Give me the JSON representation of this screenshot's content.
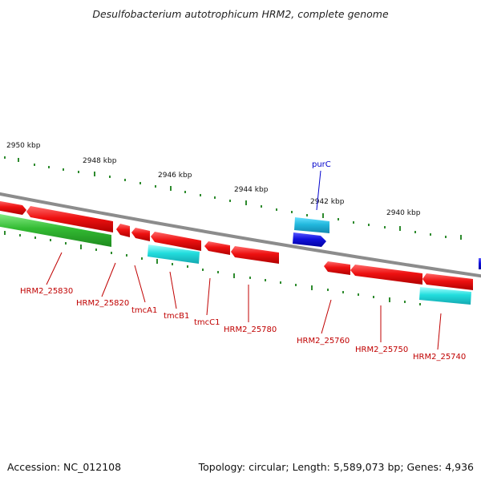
{
  "title": "Desulfobacterium autotrophicum HRM2, complete genome",
  "footer": {
    "accession": "Accession: NC_012108",
    "summary": "Topology: circular; Length: 5,589,073 bp; Genes: 4,936"
  },
  "colors": {
    "backbone": "#8c8c8c",
    "tick": "#2e8b2e",
    "gene_red": "#ee1111",
    "gene_green": "#33bb33",
    "gene_cyan": "#22dddd",
    "gene_blue": "#1111dd",
    "label_red": "#c00000",
    "label_blue": "#0000cc"
  },
  "scale": {
    "kbp_labels": [
      "2950 kbp",
      "2948 kbp",
      "2946 kbp",
      "2944 kbp",
      "2942 kbp",
      "2940 kbp"
    ]
  },
  "gene_labels": {
    "purC": "purC",
    "HRM2_25830": "HRM2_25830",
    "HRM2_25820": "HRM2_25820",
    "tmcA1": "tmcA1",
    "tmcB1": "tmcB1",
    "tmcC1": "tmcC1",
    "HRM2_25780": "HRM2_25780",
    "HRM2_25760": "HRM2_25760",
    "HRM2_25750": "HRM2_25750",
    "HRM2_25740": "HRM2_25740"
  }
}
